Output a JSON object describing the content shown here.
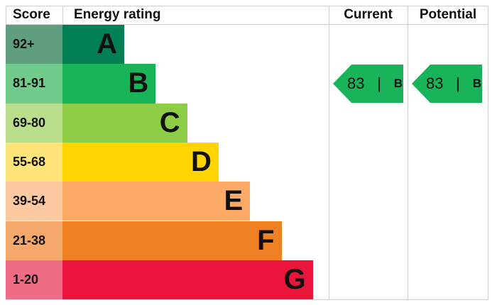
{
  "chart_data": {
    "type": "table",
    "headers": {
      "score": "Score",
      "rating": "Energy rating",
      "current": "Current",
      "potential": "Potential"
    },
    "bands": [
      {
        "score": "92+",
        "letter": "A",
        "color": "#008054",
        "score_color": "#5f9f80"
      },
      {
        "score": "81-91",
        "letter": "B",
        "color": "#19b459",
        "score_color": "#70cc8b"
      },
      {
        "score": "69-80",
        "letter": "C",
        "color": "#8dce46",
        "score_color": "#badf8c"
      },
      {
        "score": "55-68",
        "letter": "D",
        "color": "#ffd500",
        "score_color": "#ffe57a"
      },
      {
        "score": "39-54",
        "letter": "E",
        "color": "#fcaa65",
        "score_color": "#fdc9a1"
      },
      {
        "score": "21-38",
        "letter": "F",
        "color": "#ef8023",
        "score_color": "#f4a86a"
      },
      {
        "score": "1-20",
        "letter": "G",
        "color": "#e9153b",
        "score_color": "#ef6c87"
      }
    ],
    "current": {
      "value": 83,
      "letter": "B",
      "separator": "|"
    },
    "potential": {
      "value": 83,
      "letter": "B",
      "separator": "|"
    }
  }
}
